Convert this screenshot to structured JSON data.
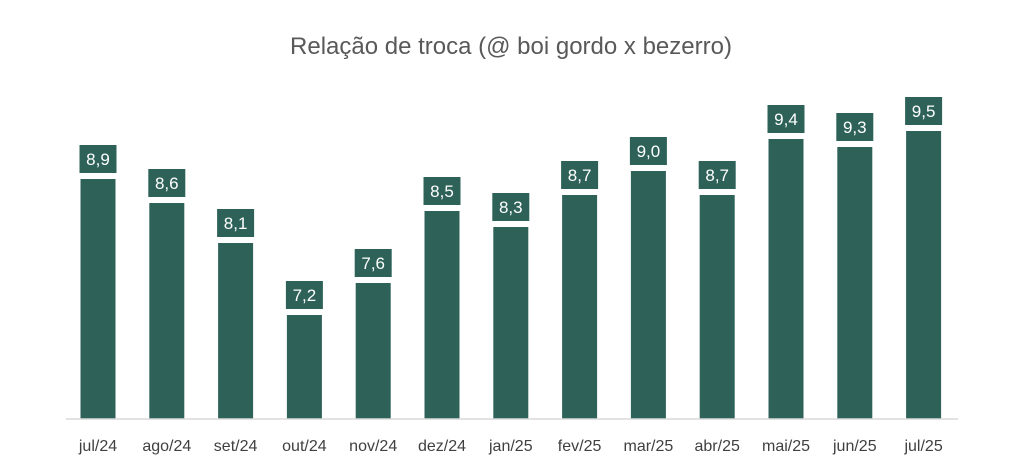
{
  "chart_data": {
    "type": "bar",
    "title": "Relação de troca (@ boi gordo x bezerro)",
    "categories": [
      "jul/24",
      "ago/24",
      "set/24",
      "out/24",
      "nov/24",
      "dez/24",
      "jan/25",
      "fev/25",
      "mar/25",
      "abr/25",
      "mai/25",
      "jun/25",
      "jul/25"
    ],
    "values": [
      8.9,
      8.6,
      8.1,
      7.2,
      7.6,
      8.5,
      8.3,
      8.7,
      9.0,
      8.7,
      9.4,
      9.3,
      9.5
    ],
    "data_labels": [
      "8,9",
      "8,6",
      "8,1",
      "7,2",
      "7,6",
      "8,5",
      "8,3",
      "8,7",
      "9,0",
      "8,7",
      "9,4",
      "9,3",
      "9,5"
    ],
    "ylim": [
      5.9,
      9.7
    ],
    "grid": false,
    "legend": "none",
    "bar_color": "#2e6259",
    "label_box_color": "#2e6259",
    "label_text_color": "#ffffff",
    "axis_color": "#d9d9d9",
    "title_color": "#595959"
  }
}
